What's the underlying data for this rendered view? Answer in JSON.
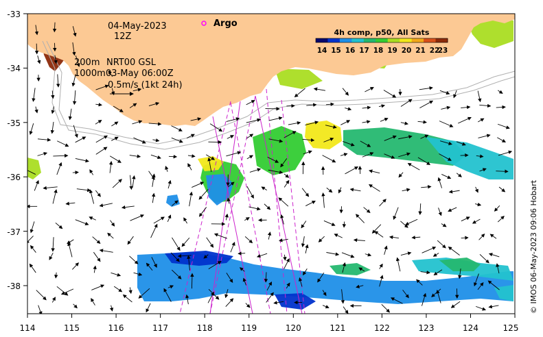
{
  "date_label": "04-May-2023",
  "time_label": "12Z",
  "argo_label": "Argo",
  "contour_label_1": "200m",
  "contour_label_2": "1000m",
  "product_label": "NRT00 GSL",
  "product_time": "03-May 06:00Z",
  "scale_vector_label": "0.5m/s (1kt 24h)",
  "colorbar": {
    "title": "4h comp, p50, All Sats",
    "labels": [
      "14",
      "15",
      "16",
      "17",
      "18",
      "19",
      "20",
      "21",
      "22",
      "23"
    ],
    "colors": [
      "#08086b",
      "#0033cc",
      "#1f8fe8",
      "#23c2cf",
      "#25b870",
      "#33cc33",
      "#aadd22",
      "#f2e81a",
      "#f2a81a",
      "#d8501a",
      "#8c2a0a"
    ]
  },
  "x_axis_labels": [
    "114",
    "115",
    "116",
    "117",
    "118",
    "119",
    "120",
    "121",
    "122",
    "123",
    "124",
    "125"
  ],
  "y_axis_labels": [
    "-33",
    "-34",
    "-35",
    "-36",
    "-37",
    "-38"
  ],
  "credit": "© IMOS 06-May-2023 09:06 Hobart",
  "colors": {
    "land": "#fcc994",
    "argo_marker": "#ff00ff",
    "satellite_track": "#cc22cc",
    "contour": "#b0b0b0"
  }
}
